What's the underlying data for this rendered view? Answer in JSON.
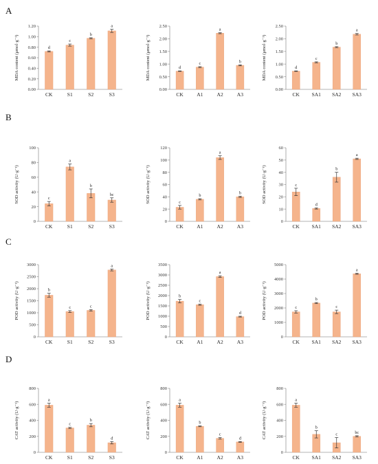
{
  "colors": {
    "bar": "#f5b48c",
    "bar_edge": "#e8a078",
    "axis": "#9a9a9a",
    "error": "#333333"
  },
  "panel_rows": [
    {
      "letter": "A"
    },
    {
      "letter": "B"
    },
    {
      "letter": "C"
    },
    {
      "letter": "D"
    }
  ],
  "chart_data": [
    {
      "type": "bar",
      "row": 0,
      "col": 0,
      "ylabel": "MDA content (μmol·g⁻¹)",
      "ylim": [
        0,
        1.2
      ],
      "yticks": [
        "0.00",
        "0.20",
        "0.40",
        "0.60",
        "0.80",
        "1.00",
        "1.20"
      ],
      "categories": [
        "CK",
        "S1",
        "S2",
        "S3"
      ],
      "values": [
        0.72,
        0.84,
        0.97,
        1.11
      ],
      "errors": [
        0.01,
        0.02,
        0.01,
        0.03
      ],
      "letters": [
        "d",
        "c",
        "b",
        "a"
      ]
    },
    {
      "type": "bar",
      "row": 0,
      "col": 1,
      "ylabel": "MDA content (μmol·g⁻¹)",
      "ylim": [
        0,
        2.5
      ],
      "yticks": [
        "0.00",
        "0.50",
        "1.00",
        "1.50",
        "2.00",
        "2.50"
      ],
      "categories": [
        "CK",
        "A1",
        "A2",
        "A3"
      ],
      "values": [
        0.72,
        0.88,
        2.22,
        0.95
      ],
      "errors": [
        0.01,
        0.02,
        0.02,
        0.02
      ],
      "letters": [
        "d",
        "c",
        "a",
        "b"
      ]
    },
    {
      "type": "bar",
      "row": 0,
      "col": 2,
      "ylabel": "MDA content (μmol·g⁻¹)",
      "ylim": [
        0,
        2.5
      ],
      "yticks": [
        "0.00",
        "0.50",
        "1.00",
        "1.50",
        "2.00",
        "2.50"
      ],
      "categories": [
        "CK",
        "SA1",
        "SA2",
        "SA3"
      ],
      "values": [
        0.72,
        1.07,
        1.67,
        2.18
      ],
      "errors": [
        0.01,
        0.02,
        0.02,
        0.03
      ],
      "letters": [
        "d",
        "c",
        "b",
        "a"
      ]
    },
    {
      "type": "bar",
      "row": 1,
      "col": 0,
      "ylabel": "SOD activity (U·g⁻¹)",
      "ylim": [
        0,
        100
      ],
      "yticks": [
        "0",
        "20",
        "40",
        "60",
        "80",
        "100"
      ],
      "categories": [
        "CK",
        "S1",
        "S2",
        "S3"
      ],
      "values": [
        24,
        74,
        38,
        29
      ],
      "errors": [
        3,
        4,
        6,
        3
      ],
      "letters": [
        "c",
        "a",
        "b",
        "bc"
      ]
    },
    {
      "type": "bar",
      "row": 1,
      "col": 1,
      "ylabel": "SOD activity (U·g⁻¹)",
      "ylim": [
        0,
        120
      ],
      "yticks": [
        "0",
        "20",
        "40",
        "60",
        "80",
        "100",
        "120"
      ],
      "categories": [
        "CK",
        "A1",
        "A2",
        "A3"
      ],
      "values": [
        23,
        36,
        104,
        40
      ],
      "errors": [
        3,
        1,
        3,
        1
      ],
      "letters": [
        "c",
        "b",
        "a",
        "b"
      ]
    },
    {
      "type": "bar",
      "row": 1,
      "col": 2,
      "ylabel": "SOD activity (U·g⁻¹)",
      "ylim": [
        0,
        60
      ],
      "yticks": [
        "0",
        "10",
        "20",
        "30",
        "40",
        "50",
        "60"
      ],
      "categories": [
        "CK",
        "SA1",
        "SA2",
        "SA3"
      ],
      "values": [
        24,
        10.5,
        36,
        51
      ],
      "errors": [
        3,
        0.5,
        4,
        0.5
      ],
      "letters": [
        "c",
        "d",
        "b",
        "a"
      ]
    },
    {
      "type": "bar",
      "row": 2,
      "col": 0,
      "ylabel": "POD activity (U·g⁻¹)",
      "ylim": [
        0,
        3000
      ],
      "yticks": [
        "0",
        "500",
        "1000",
        "1500",
        "2000",
        "2500",
        "3000"
      ],
      "categories": [
        "CK",
        "S1",
        "S2",
        "S3"
      ],
      "values": [
        1730,
        1050,
        1100,
        2780
      ],
      "errors": [
        80,
        40,
        30,
        40
      ],
      "letters": [
        "b",
        "c",
        "c",
        "a"
      ]
    },
    {
      "type": "bar",
      "row": 2,
      "col": 1,
      "ylabel": "POD activity (U·g⁻¹)",
      "ylim": [
        0,
        3500
      ],
      "yticks": [
        "0",
        "500",
        "1000",
        "1500",
        "2000",
        "2500",
        "3000",
        "3500"
      ],
      "categories": [
        "CK",
        "A1",
        "A2",
        "A3"
      ],
      "values": [
        1730,
        1560,
        2920,
        980
      ],
      "errors": [
        80,
        30,
        40,
        20
      ],
      "letters": [
        "b",
        "c",
        "a",
        "d"
      ]
    },
    {
      "type": "bar",
      "row": 2,
      "col": 2,
      "ylabel": "POD activity (U·g⁻¹)",
      "ylim": [
        0,
        5000
      ],
      "yticks": [
        "0",
        "1000",
        "2000",
        "3000",
        "4000",
        "5000"
      ],
      "categories": [
        "CK",
        "SA1",
        "SA2",
        "SA3"
      ],
      "values": [
        1730,
        2340,
        1730,
        4370
      ],
      "errors": [
        80,
        40,
        120,
        40
      ],
      "letters": [
        "c",
        "b",
        "c",
        "a"
      ]
    },
    {
      "type": "bar",
      "row": 3,
      "col": 0,
      "ylabel": "CAT activity (U·g⁻¹)",
      "ylim": [
        0,
        800
      ],
      "yticks": [
        "0",
        "200",
        "400",
        "600",
        "800"
      ],
      "categories": [
        "CK",
        "S1",
        "S2",
        "S3"
      ],
      "values": [
        590,
        305,
        340,
        120
      ],
      "errors": [
        25,
        8,
        20,
        15
      ],
      "letters": [
        "a",
        "c",
        "b",
        "d"
      ]
    },
    {
      "type": "bar",
      "row": 3,
      "col": 1,
      "ylabel": "CAT activity (U·g⁻¹)",
      "ylim": [
        0,
        800
      ],
      "yticks": [
        "0",
        "200",
        "400",
        "600",
        "800"
      ],
      "categories": [
        "CK",
        "A1",
        "A2",
        "A3"
      ],
      "values": [
        590,
        325,
        175,
        130
      ],
      "errors": [
        25,
        5,
        10,
        5
      ],
      "letters": [
        "a",
        "b",
        "c",
        "d"
      ]
    },
    {
      "type": "bar",
      "row": 3,
      "col": 2,
      "ylabel": "CAT activity (U·g⁻¹)",
      "ylim": [
        0,
        800
      ],
      "yticks": [
        "0",
        "200",
        "400",
        "600",
        "800"
      ],
      "categories": [
        "CK",
        "SA1",
        "SA2",
        "SA3"
      ],
      "values": [
        590,
        225,
        120,
        200
      ],
      "errors": [
        25,
        45,
        65,
        8
      ],
      "letters": [
        "a",
        "b",
        "c",
        "bc"
      ]
    }
  ]
}
